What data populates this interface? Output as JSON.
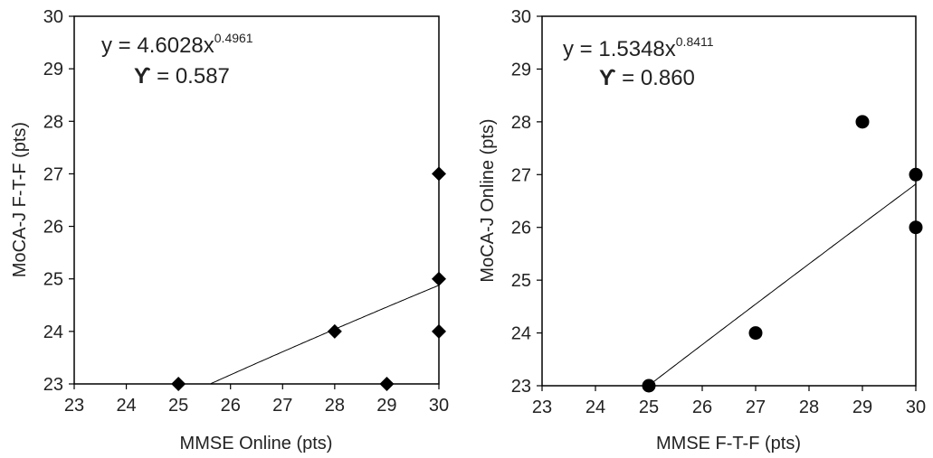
{
  "chart_data": [
    {
      "type": "scatter",
      "xlabel": "MMSE Online (pts)",
      "ylabel": "MoCA-J  F-T-F (pts)",
      "xlim": [
        23,
        30
      ],
      "ylim": [
        23,
        30
      ],
      "xticks": [
        23,
        24,
        25,
        26,
        27,
        28,
        29,
        30
      ],
      "yticks": [
        23,
        24,
        25,
        26,
        27,
        28,
        29,
        30
      ],
      "marker": "diamond",
      "points": [
        {
          "x": 25,
          "y": 23
        },
        {
          "x": 28,
          "y": 24
        },
        {
          "x": 29,
          "y": 23
        },
        {
          "x": 30,
          "y": 24
        },
        {
          "x": 30,
          "y": 25
        },
        {
          "x": 30,
          "y": 27
        }
      ],
      "trendline": {
        "type": "power",
        "a": 4.6028,
        "b": 0.4961
      },
      "equation": {
        "prefix": "y = 4.6028x",
        "exponent": "0.4961",
        "r_symbol": "ϒ",
        "r_text": " = 0.587"
      }
    },
    {
      "type": "scatter",
      "xlabel": "MMSE F-T-F (pts)",
      "ylabel": "MoCA-J  Online (pts)",
      "xlim": [
        23,
        30
      ],
      "ylim": [
        23,
        30
      ],
      "xticks": [
        23,
        24,
        25,
        26,
        27,
        28,
        29,
        30
      ],
      "yticks": [
        23,
        24,
        25,
        26,
        27,
        28,
        29,
        30
      ],
      "marker": "circle",
      "points": [
        {
          "x": 25,
          "y": 23
        },
        {
          "x": 27,
          "y": 24
        },
        {
          "x": 29,
          "y": 28
        },
        {
          "x": 30,
          "y": 26
        },
        {
          "x": 30,
          "y": 27
        }
      ],
      "trendline": {
        "type": "power",
        "a": 1.5348,
        "b": 0.8411
      },
      "equation": {
        "prefix": "y = 1.5348x",
        "exponent": "0.8411",
        "r_symbol": "ϒ",
        "r_text": " = 0.860"
      }
    }
  ]
}
